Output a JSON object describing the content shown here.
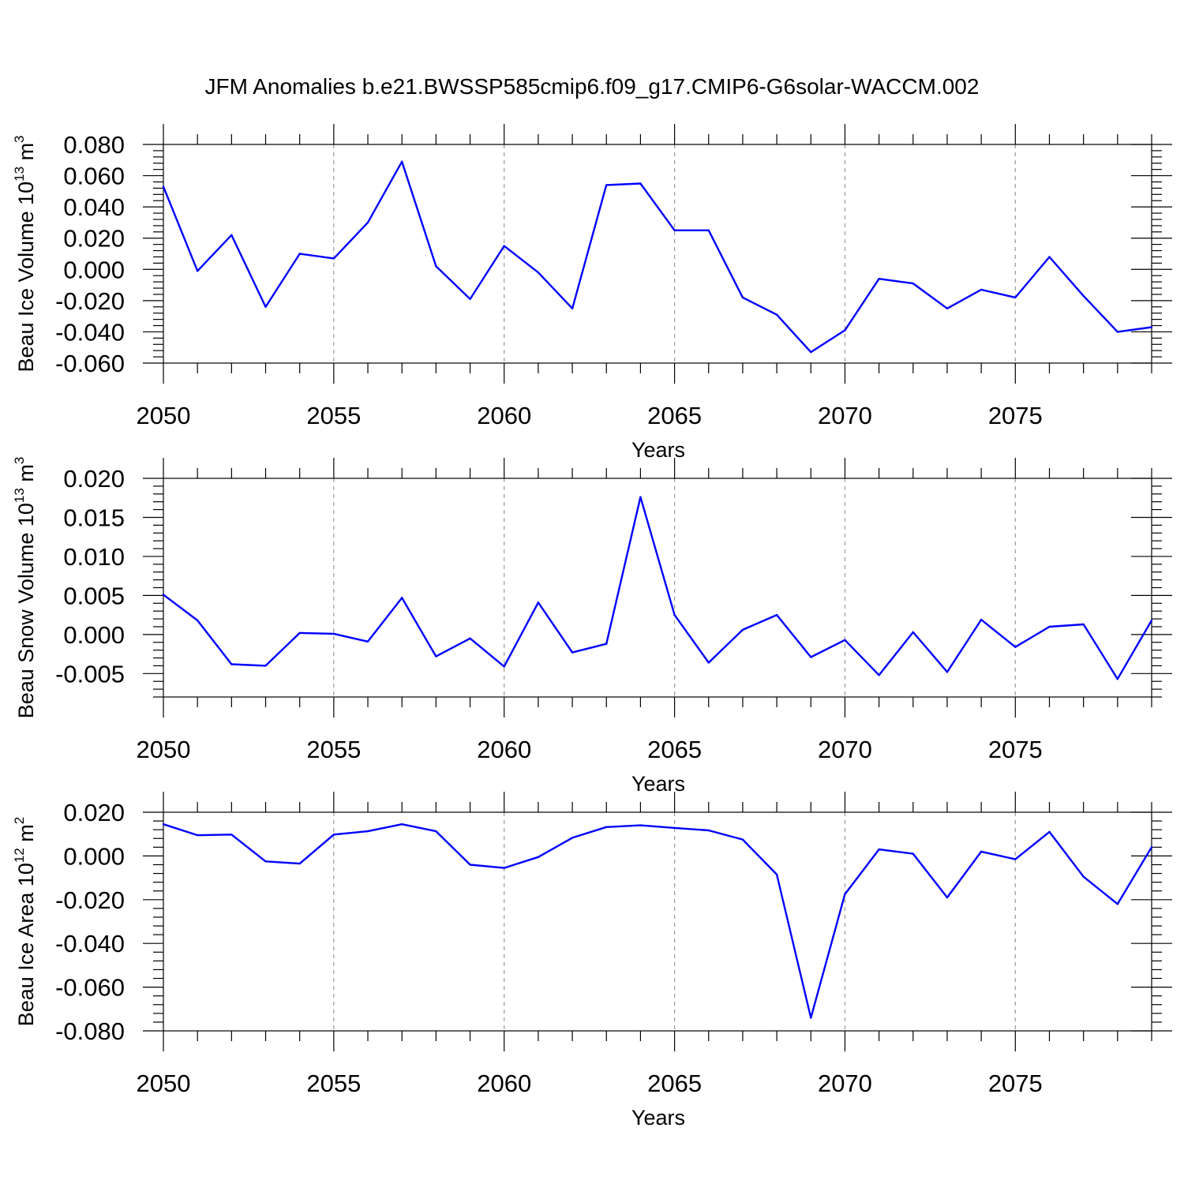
{
  "figure_title": "JFM Anomalies b.e21.BWSSP585cmip6.f09_g17.CMIP6-G6solar-WACCM.002",
  "colors": {
    "line": "#0000ff",
    "grid": "#999999",
    "axis": "#000000"
  },
  "chart_data": [
    {
      "type": "line",
      "title": "",
      "ylabel": {
        "text": "Beau Ice Volume 10",
        "exponent": "13",
        "unit": "m",
        "unit_exponent": "3"
      },
      "xlabel": "Years",
      "xlim": [
        2050,
        2079
      ],
      "ylim": [
        -0.06,
        0.08
      ],
      "yticks": [
        -0.06,
        -0.04,
        -0.02,
        0.0,
        0.02,
        0.04,
        0.06,
        0.08
      ],
      "ytick_labels": [
        "-0.060",
        "-0.040",
        "-0.020",
        "0.000",
        "0.020",
        "0.040",
        "0.060",
        "0.080"
      ],
      "xticks": [
        2050,
        2055,
        2060,
        2065,
        2070,
        2075
      ],
      "xtick_labels": [
        "2050",
        "2055",
        "2060",
        "2065",
        "2070",
        "2075"
      ],
      "x": [
        2050,
        2051,
        2052,
        2053,
        2054,
        2055,
        2056,
        2057,
        2058,
        2059,
        2060,
        2061,
        2062,
        2063,
        2064,
        2065,
        2066,
        2067,
        2068,
        2069,
        2070,
        2071,
        2072,
        2073,
        2074,
        2075,
        2076,
        2077,
        2078,
        2079
      ],
      "series": [
        {
          "name": "Beau Ice Volume",
          "values": [
            0.053,
            -0.001,
            0.022,
            -0.024,
            0.01,
            0.007,
            0.03,
            0.069,
            0.002,
            -0.019,
            0.015,
            -0.002,
            -0.025,
            0.054,
            0.055,
            0.025,
            0.025,
            -0.018,
            -0.029,
            -0.053,
            -0.039,
            -0.006,
            -0.009,
            -0.025,
            -0.013,
            -0.018,
            0.008,
            -0.017,
            -0.04,
            -0.037
          ]
        }
      ]
    },
    {
      "type": "line",
      "title": "",
      "ylabel": {
        "text": "Beau Snow Volume 10",
        "exponent": "13",
        "unit": "m",
        "unit_exponent": "3"
      },
      "xlabel": "Years",
      "xlim": [
        2050,
        2079
      ],
      "ylim": [
        -0.008,
        0.02
      ],
      "yticks": [
        -0.005,
        0.0,
        0.005,
        0.01,
        0.015,
        0.02
      ],
      "ytick_labels": [
        "-0.005",
        "0.000",
        "0.005",
        "0.010",
        "0.015",
        "0.020"
      ],
      "xticks": [
        2050,
        2055,
        2060,
        2065,
        2070,
        2075
      ],
      "xtick_labels": [
        "2050",
        "2055",
        "2060",
        "2065",
        "2070",
        "2075"
      ],
      "x": [
        2050,
        2051,
        2052,
        2053,
        2054,
        2055,
        2056,
        2057,
        2058,
        2059,
        2060,
        2061,
        2062,
        2063,
        2064,
        2065,
        2066,
        2067,
        2068,
        2069,
        2070,
        2071,
        2072,
        2073,
        2074,
        2075,
        2076,
        2077,
        2078,
        2079
      ],
      "series": [
        {
          "name": "Beau Snow Volume",
          "values": [
            0.0051,
            0.0018,
            -0.0038,
            -0.004,
            0.0002,
            0.0001,
            -0.0009,
            0.0047,
            -0.0028,
            -0.0005,
            -0.0041,
            0.0041,
            -0.0023,
            -0.0012,
            0.0176,
            0.0025,
            -0.0036,
            0.0006,
            0.0025,
            -0.0029,
            -0.0007,
            -0.0052,
            0.0003,
            -0.0048,
            0.0019,
            -0.0016,
            0.001,
            0.0013,
            -0.0057,
            0.0018
          ]
        }
      ]
    },
    {
      "type": "line",
      "title": "",
      "ylabel": {
        "text": "Beau Ice Area 10",
        "exponent": "12",
        "unit": "m",
        "unit_exponent": "2"
      },
      "xlabel": "Years",
      "xlim": [
        2050,
        2079
      ],
      "ylim": [
        -0.08,
        0.02
      ],
      "yticks": [
        -0.08,
        -0.06,
        -0.04,
        -0.02,
        0.0,
        0.02
      ],
      "ytick_labels": [
        "-0.080",
        "-0.060",
        "-0.040",
        "-0.020",
        "0.000",
        "0.020"
      ],
      "xticks": [
        2050,
        2055,
        2060,
        2065,
        2070,
        2075
      ],
      "xtick_labels": [
        "2050",
        "2055",
        "2060",
        "2065",
        "2070",
        "2075"
      ],
      "x": [
        2050,
        2051,
        2052,
        2053,
        2054,
        2055,
        2056,
        2057,
        2058,
        2059,
        2060,
        2061,
        2062,
        2063,
        2064,
        2065,
        2066,
        2067,
        2068,
        2069,
        2070,
        2071,
        2072,
        2073,
        2074,
        2075,
        2076,
        2077,
        2078,
        2079
      ],
      "series": [
        {
          "name": "Beau Ice Area",
          "values": [
            0.0145,
            0.0095,
            0.0098,
            -0.0025,
            -0.0035,
            0.0098,
            0.0113,
            0.0145,
            0.0113,
            -0.004,
            -0.0055,
            -0.0005,
            0.0083,
            0.0132,
            0.014,
            0.0128,
            0.0117,
            0.0075,
            -0.0085,
            -0.074,
            -0.0175,
            0.003,
            0.001,
            -0.019,
            0.002,
            -0.0015,
            0.011,
            -0.0095,
            -0.022,
            0.004
          ]
        }
      ]
    }
  ]
}
